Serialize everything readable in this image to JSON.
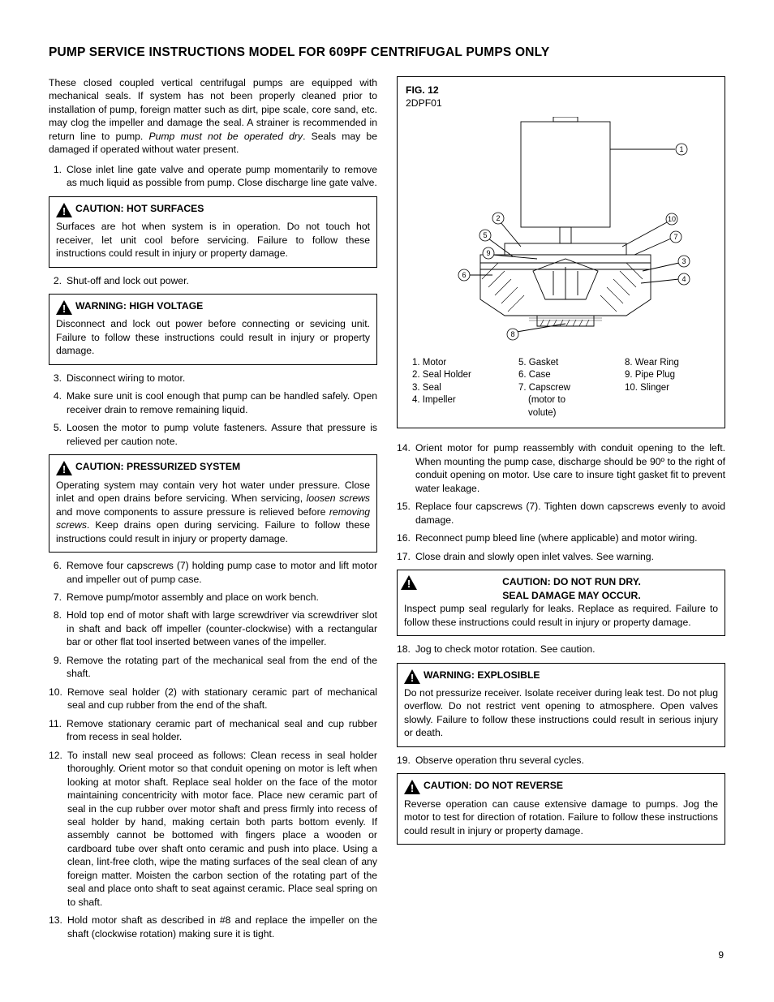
{
  "page_number": "9",
  "title": "PUMP SERVICE INSTRUCTIONS MODEL FOR 609PF CENTRIFUGAL PUMPS ONLY",
  "intro_a": "These closed coupled vertical centrifugal pumps are equipped with mechanical seals. If system has not been properly cleaned prior to installation of pump, foreign matter such as dirt, pipe scale, core sand, etc. may clog the impeller and damage the seal. A strainer is recommended in return line to pump. ",
  "intro_italic": "Pump must not be operated dry",
  "intro_b": ". Seals may be damaged if operated without water present.",
  "steps_left_a": [
    {
      "n": "1.",
      "t": "Close inlet line gate valve and operate pump momentarily to remove as much liquid as possible from pump. Close discharge line gate valve."
    }
  ],
  "alert_hot": {
    "title": "CAUTION: HOT SURFACES",
    "body": "Surfaces are hot when system is in operation. Do not touch hot receiver, let unit cool before servicing. Failure to follow these instructions could result in injury or property damage."
  },
  "steps_left_b": [
    {
      "n": "2.",
      "t": "Shut-off and lock out power."
    }
  ],
  "alert_hv": {
    "title": "WARNING: HIGH VOLTAGE",
    "body": "Disconnect and lock out power before connecting or sevicing unit. Failure to follow these instructions could result in injury or property damage."
  },
  "steps_left_c": [
    {
      "n": "3.",
      "t": "Disconnect wiring to motor."
    },
    {
      "n": "4.",
      "t": "Make sure unit is cool enough that pump can be handled safely. Open receiver drain to remove remaining liquid."
    },
    {
      "n": "5.",
      "t": "Loosen the motor to pump volute fasteners. Assure that pressure is relieved per caution note."
    }
  ],
  "alert_press": {
    "title": "CAUTION: PRESSURIZED SYSTEM",
    "body_a": "Operating system may contain very hot water under pressure. Close inlet and open drains before servicing. When servicing, ",
    "italic_a": "loosen screws",
    "body_b": " and move components to assure pressure is relieved before ",
    "italic_b": "removing screws",
    "body_c": ". Keep drains open during servicing. Failure to follow these instructions could result in injury or property damage."
  },
  "steps_left_d": [
    {
      "n": "6.",
      "t": "Remove four capscrews (7) holding pump case to motor and lift motor and impeller out of pump case."
    },
    {
      "n": "7.",
      "t": "Remove pump/motor assembly and place on work bench."
    },
    {
      "n": "8.",
      "t": "Hold top end of motor shaft with large screwdriver via screwdriver slot in shaft and back off impeller (counter-clockwise) with a rectangular bar or other flat tool inserted between vanes of the impeller."
    },
    {
      "n": "9.",
      "t": "Remove the rotating part of the mechanical seal from the end of the shaft."
    },
    {
      "n": "10.",
      "t": "Remove seal holder (2) with stationary ceramic part of mechanical seal and cup rubber from the end of the shaft."
    },
    {
      "n": "11.",
      "t": "Remove stationary ceramic part of mechanical seal and cup rubber from recess in seal holder."
    },
    {
      "n": "12.",
      "t": "To install new seal proceed as follows: Clean recess in seal holder thoroughly. Orient motor so that conduit opening on motor is left when looking at motor shaft. Replace seal holder on the face of the motor maintaining concentricity with motor face. Place new ceramic part of seal in the cup rubber over motor shaft and press firmly into recess of seal holder by hand, making certain both parts bottom evenly. If assembly cannot be bottomed with fingers place a wooden or cardboard tube over shaft onto ceramic and push into place. Using a clean, lint-free cloth, wipe the  mating surfaces of the seal clean of any foreign matter. Moisten the carbon section of the rotating part of the seal and place onto shaft to seat against ceramic. Place seal spring on to shaft."
    },
    {
      "n": "13.",
      "t": "Hold motor shaft as described in #8 and replace the impeller on the shaft (clockwise rotation) making sure it is tight."
    }
  ],
  "figure": {
    "label": "FIG. 12",
    "model": "2DPF01",
    "parts_col1": [
      "1.  Motor",
      "2.  Seal Holder",
      "3.  Seal",
      "4.  Impeller"
    ],
    "parts_col2": [
      "5.  Gasket",
      "6.  Case",
      "7.  Capscrew"
    ],
    "parts_col2_sub": [
      "(motor to",
      "volute)"
    ],
    "parts_col3": [
      "8.  Wear Ring",
      "9.  Pipe Plug",
      "10.  Slinger"
    ]
  },
  "steps_right_a": [
    {
      "n": "14.",
      "t": "Orient motor for pump reassembly with conduit opening to the left. When mounting the pump case, discharge should be 90º to the right of conduit opening on motor. Use care to insure tight gasket fit to prevent water leakage."
    },
    {
      "n": "15.",
      "t": "Replace four capscrews (7). Tighten down capscrews evenly to avoid damage."
    },
    {
      "n": "16.",
      "t": "Reconnect pump bleed line (where applicable) and motor wiring."
    },
    {
      "n": "17.",
      "t": "Close drain and slowly open inlet valves. See warning."
    }
  ],
  "alert_dry": {
    "title1": "CAUTION: DO NOT RUN DRY.",
    "title2": "SEAL DAMAGE MAY OCCUR.",
    "body": "Inspect pump seal regularly for leaks. Replace as required. Failure to follow these instructions could result in injury or property damage."
  },
  "steps_right_b": [
    {
      "n": "18.",
      "t": "Jog to check motor rotation. See caution."
    }
  ],
  "alert_exp": {
    "title": "WARNING: EXPLOSIBLE",
    "body": "Do not pressurize receiver. Isolate receiver during leak test. Do not plug overflow. Do not restrict vent opening to atmosphere. Open valves slowly. Failure to follow these instructions could result in serious injury or death."
  },
  "steps_right_c": [
    {
      "n": "19.",
      "t": "Observe operation thru several cycles."
    }
  ],
  "alert_rev": {
    "title": "CAUTION: DO NOT REVERSE",
    "body": "Reverse operation can cause extensive damage to pumps. Jog the motor to test for direction of rotation. Failure to follow these instructions could result in injury or property damage."
  }
}
